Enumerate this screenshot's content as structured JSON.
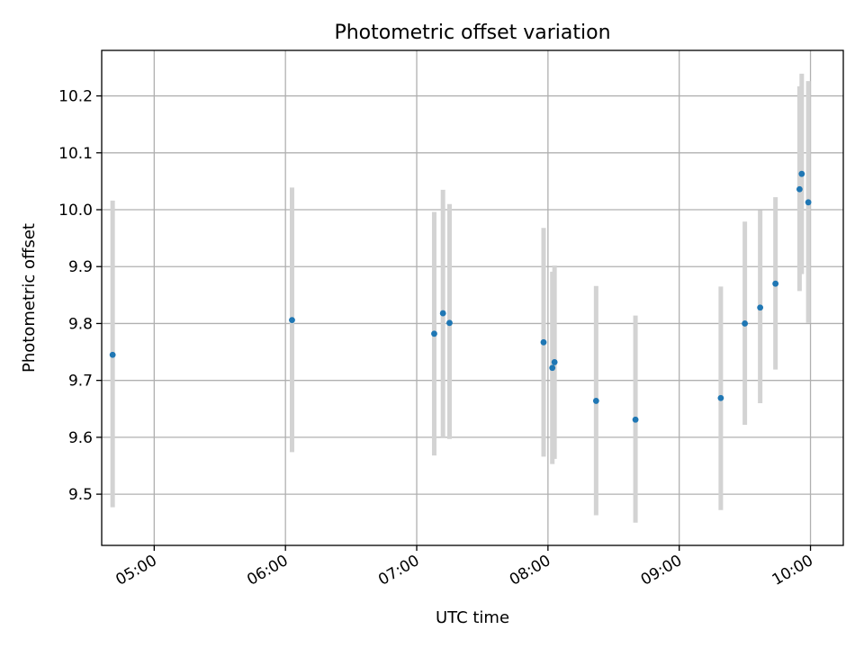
{
  "chart_data": {
    "type": "scatter",
    "title": "Photometric offset variation",
    "xlabel": "UTC time",
    "ylabel": "Photometric offset",
    "x_unit": "UTC time (HH:MM)",
    "xlim": [
      "04:36",
      "10:15"
    ],
    "ylim": [
      9.41,
      10.28
    ],
    "x_ticks": [
      "05:00",
      "06:00",
      "07:00",
      "08:00",
      "09:00",
      "10:00"
    ],
    "y_ticks": [
      9.5,
      9.6,
      9.7,
      9.8,
      9.9,
      10.0,
      10.1,
      10.2
    ],
    "y_tick_labels": [
      "9.5",
      "9.6",
      "9.7",
      "9.8",
      "9.9",
      "10.0",
      "10.1",
      "10.2"
    ],
    "x_tick_rotation_deg": 30,
    "grid": true,
    "marker_color": "#1f77b4",
    "errorbar_color": "#d3d3d3",
    "series": [
      {
        "points": [
          {
            "x": "04:41",
            "y": 9.745,
            "err_low": 9.477,
            "err_high": 10.016
          },
          {
            "x": "06:03",
            "y": 9.806,
            "err_low": 9.574,
            "err_high": 10.039
          },
          {
            "x": "07:08",
            "y": 9.782,
            "err_low": 9.568,
            "err_high": 9.996
          },
          {
            "x": "07:12",
            "y": 9.818,
            "err_low": 9.6,
            "err_high": 10.035
          },
          {
            "x": "07:15",
            "y": 9.801,
            "err_low": 9.597,
            "err_high": 10.01
          },
          {
            "x": "07:58",
            "y": 9.767,
            "err_low": 9.566,
            "err_high": 9.968
          },
          {
            "x": "08:02",
            "y": 9.722,
            "err_low": 9.553,
            "err_high": 9.891
          },
          {
            "x": "08:03",
            "y": 9.732,
            "err_low": 9.562,
            "err_high": 9.902
          },
          {
            "x": "08:22",
            "y": 9.664,
            "err_low": 9.463,
            "err_high": 9.866
          },
          {
            "x": "08:40",
            "y": 9.631,
            "err_low": 9.45,
            "err_high": 9.814
          },
          {
            "x": "09:19",
            "y": 9.669,
            "err_low": 9.472,
            "err_high": 9.865
          },
          {
            "x": "09:30",
            "y": 9.8,
            "err_low": 9.622,
            "err_high": 9.979
          },
          {
            "x": "09:37",
            "y": 9.828,
            "err_low": 9.66,
            "err_high": 9.999
          },
          {
            "x": "09:44",
            "y": 9.87,
            "err_low": 9.719,
            "err_high": 10.022
          },
          {
            "x": "09:55",
            "y": 10.036,
            "err_low": 9.857,
            "err_high": 10.217
          },
          {
            "x": "09:56",
            "y": 10.063,
            "err_low": 9.887,
            "err_high": 10.239
          },
          {
            "x": "09:59",
            "y": 10.013,
            "err_low": 9.801,
            "err_high": 10.226
          }
        ]
      }
    ]
  }
}
